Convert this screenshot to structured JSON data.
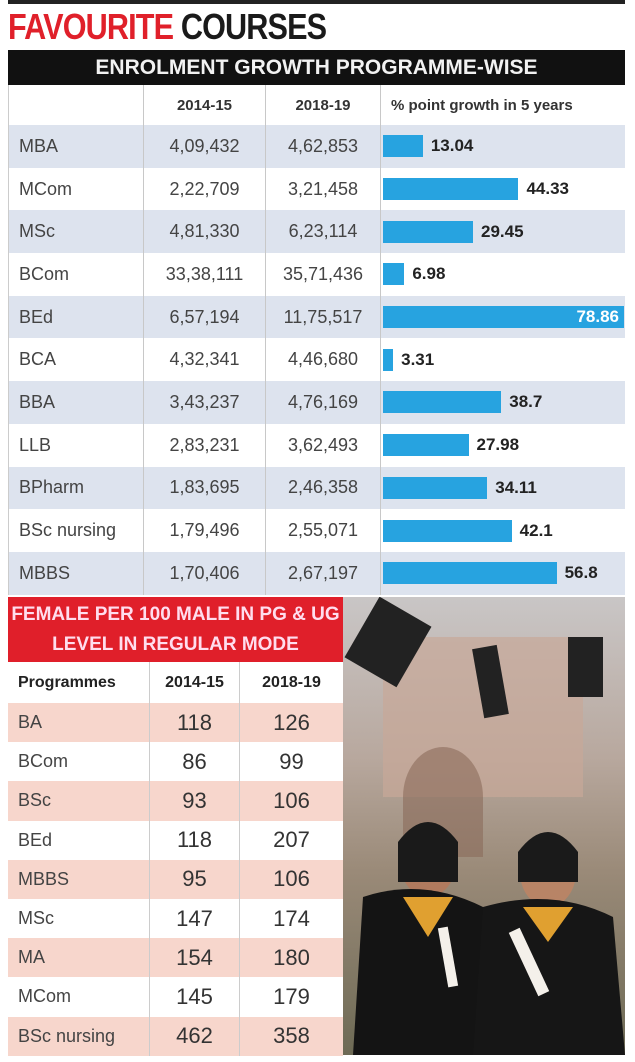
{
  "title": {
    "part1": "FAVOURITE",
    "part2": "COURSES"
  },
  "chart_data": {
    "type": "bar",
    "title": "ENROLMENT GROWTH PROGRAMME-WISE",
    "columns": [
      "",
      "2014-15",
      "2018-19",
      "% point growth in 5 years"
    ],
    "categories": [
      "MBA",
      "MCom",
      "MSc",
      "BCom",
      "BEd",
      "BCA",
      "BBA",
      "LLB",
      "BPharm",
      "BSc nursing",
      "MBBS"
    ],
    "enrol_2014_15": [
      "4,09,432",
      "2,22,709",
      "4,81,330",
      "33,38,111",
      "6,57,194",
      "4,32,341",
      "3,43,237",
      "2,83,231",
      "1,83,695",
      "1,79,496",
      "1,70,406"
    ],
    "enrol_2018_19": [
      "4,62,853",
      "3,21,458",
      "6,23,114",
      "35,71,436",
      "11,75,517",
      "4,46,680",
      "4,76,169",
      "3,62,493",
      "2,46,358",
      "2,55,071",
      "2,67,197"
    ],
    "values": [
      13.04,
      44.33,
      29.45,
      6.98,
      78.86,
      3.31,
      38.7,
      27.98,
      34.11,
      42.1,
      56.8
    ],
    "value_labels": [
      "13.04",
      "44.33",
      "29.45",
      "6.98",
      "78.86",
      "3.31",
      "38.7",
      "27.98",
      "34.11",
      "42.1",
      "56.8"
    ],
    "xlim": [
      0,
      78.86
    ],
    "bar_color": "#27a3e0"
  },
  "female_table": {
    "title": "FEMALE PER 100 MALE IN PG & UG LEVEL IN REGULAR MODE",
    "columns": [
      "Programmes",
      "2014-15",
      "2018-19"
    ],
    "rows": [
      [
        "BA",
        "118",
        "126"
      ],
      [
        "BCom",
        "86",
        "99"
      ],
      [
        "BSc",
        "93",
        "106"
      ],
      [
        "BEd",
        "118",
        "207"
      ],
      [
        "MBBS",
        "95",
        "106"
      ],
      [
        "MSc",
        "147",
        "174"
      ],
      [
        "MA",
        "154",
        "180"
      ],
      [
        "MCom",
        "145",
        "179"
      ],
      [
        "BSc nursing",
        "462",
        "358"
      ]
    ]
  }
}
